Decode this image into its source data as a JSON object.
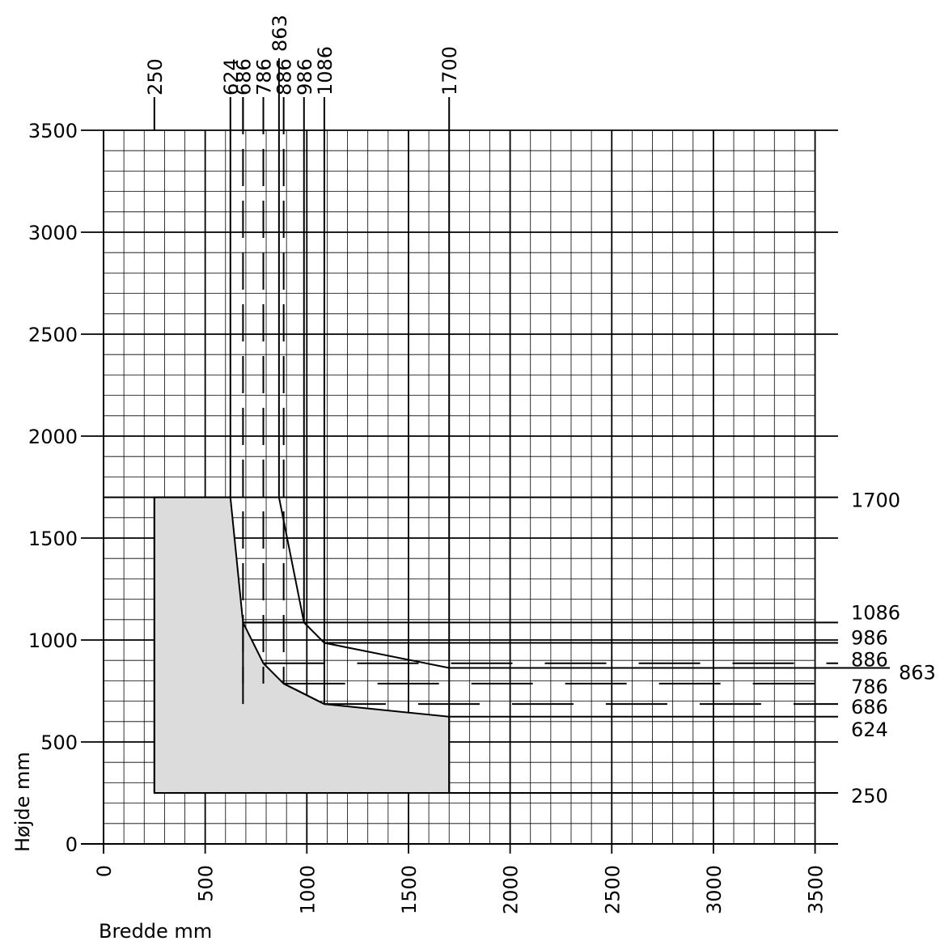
{
  "chart_data": {
    "type": "area",
    "xlabel": "Bredde mm",
    "ylabel": "Højde mm",
    "xlim": [
      0,
      3600
    ],
    "ylim": [
      0,
      3500
    ],
    "x_ticks": [
      0,
      500,
      1000,
      1500,
      2000,
      2500,
      3000,
      3500
    ],
    "y_ticks": [
      0,
      500,
      1000,
      1500,
      2000,
      2500,
      3000,
      3500
    ],
    "minor_grid_step": 100,
    "grid": true,
    "colors": {
      "fill": "#dcdcdc",
      "line": "#000000",
      "grid": "#000000"
    },
    "top_labels": [
      "250",
      "624",
      "686",
      "786",
      "863",
      "886",
      "986",
      "1086",
      "1700"
    ],
    "right_labels": [
      "1700",
      "1086",
      "986",
      "886",
      "863",
      "786",
      "686",
      "624",
      "250"
    ],
    "shaded_region": {
      "x": [
        250,
        624,
        686,
        786,
        886,
        1086,
        1700,
        1700,
        250
      ],
      "y": [
        1700,
        1700,
        1086,
        886,
        786,
        686,
        624,
        250,
        250
      ]
    },
    "outer_boundary": {
      "x": [
        863,
        986,
        1086,
        1700
      ],
      "y": [
        1700,
        1086,
        986,
        863
      ]
    },
    "solid_vertical_lines": [
      250,
      624,
      686,
      863,
      986,
      1086,
      1700
    ],
    "dashed_vertical_lines": [
      686,
      786,
      886
    ],
    "solid_horizontal_lines": [
      250,
      624,
      863,
      986,
      1086,
      1700
    ],
    "dashed_horizontal_lines": [
      686,
      786,
      886
    ]
  }
}
